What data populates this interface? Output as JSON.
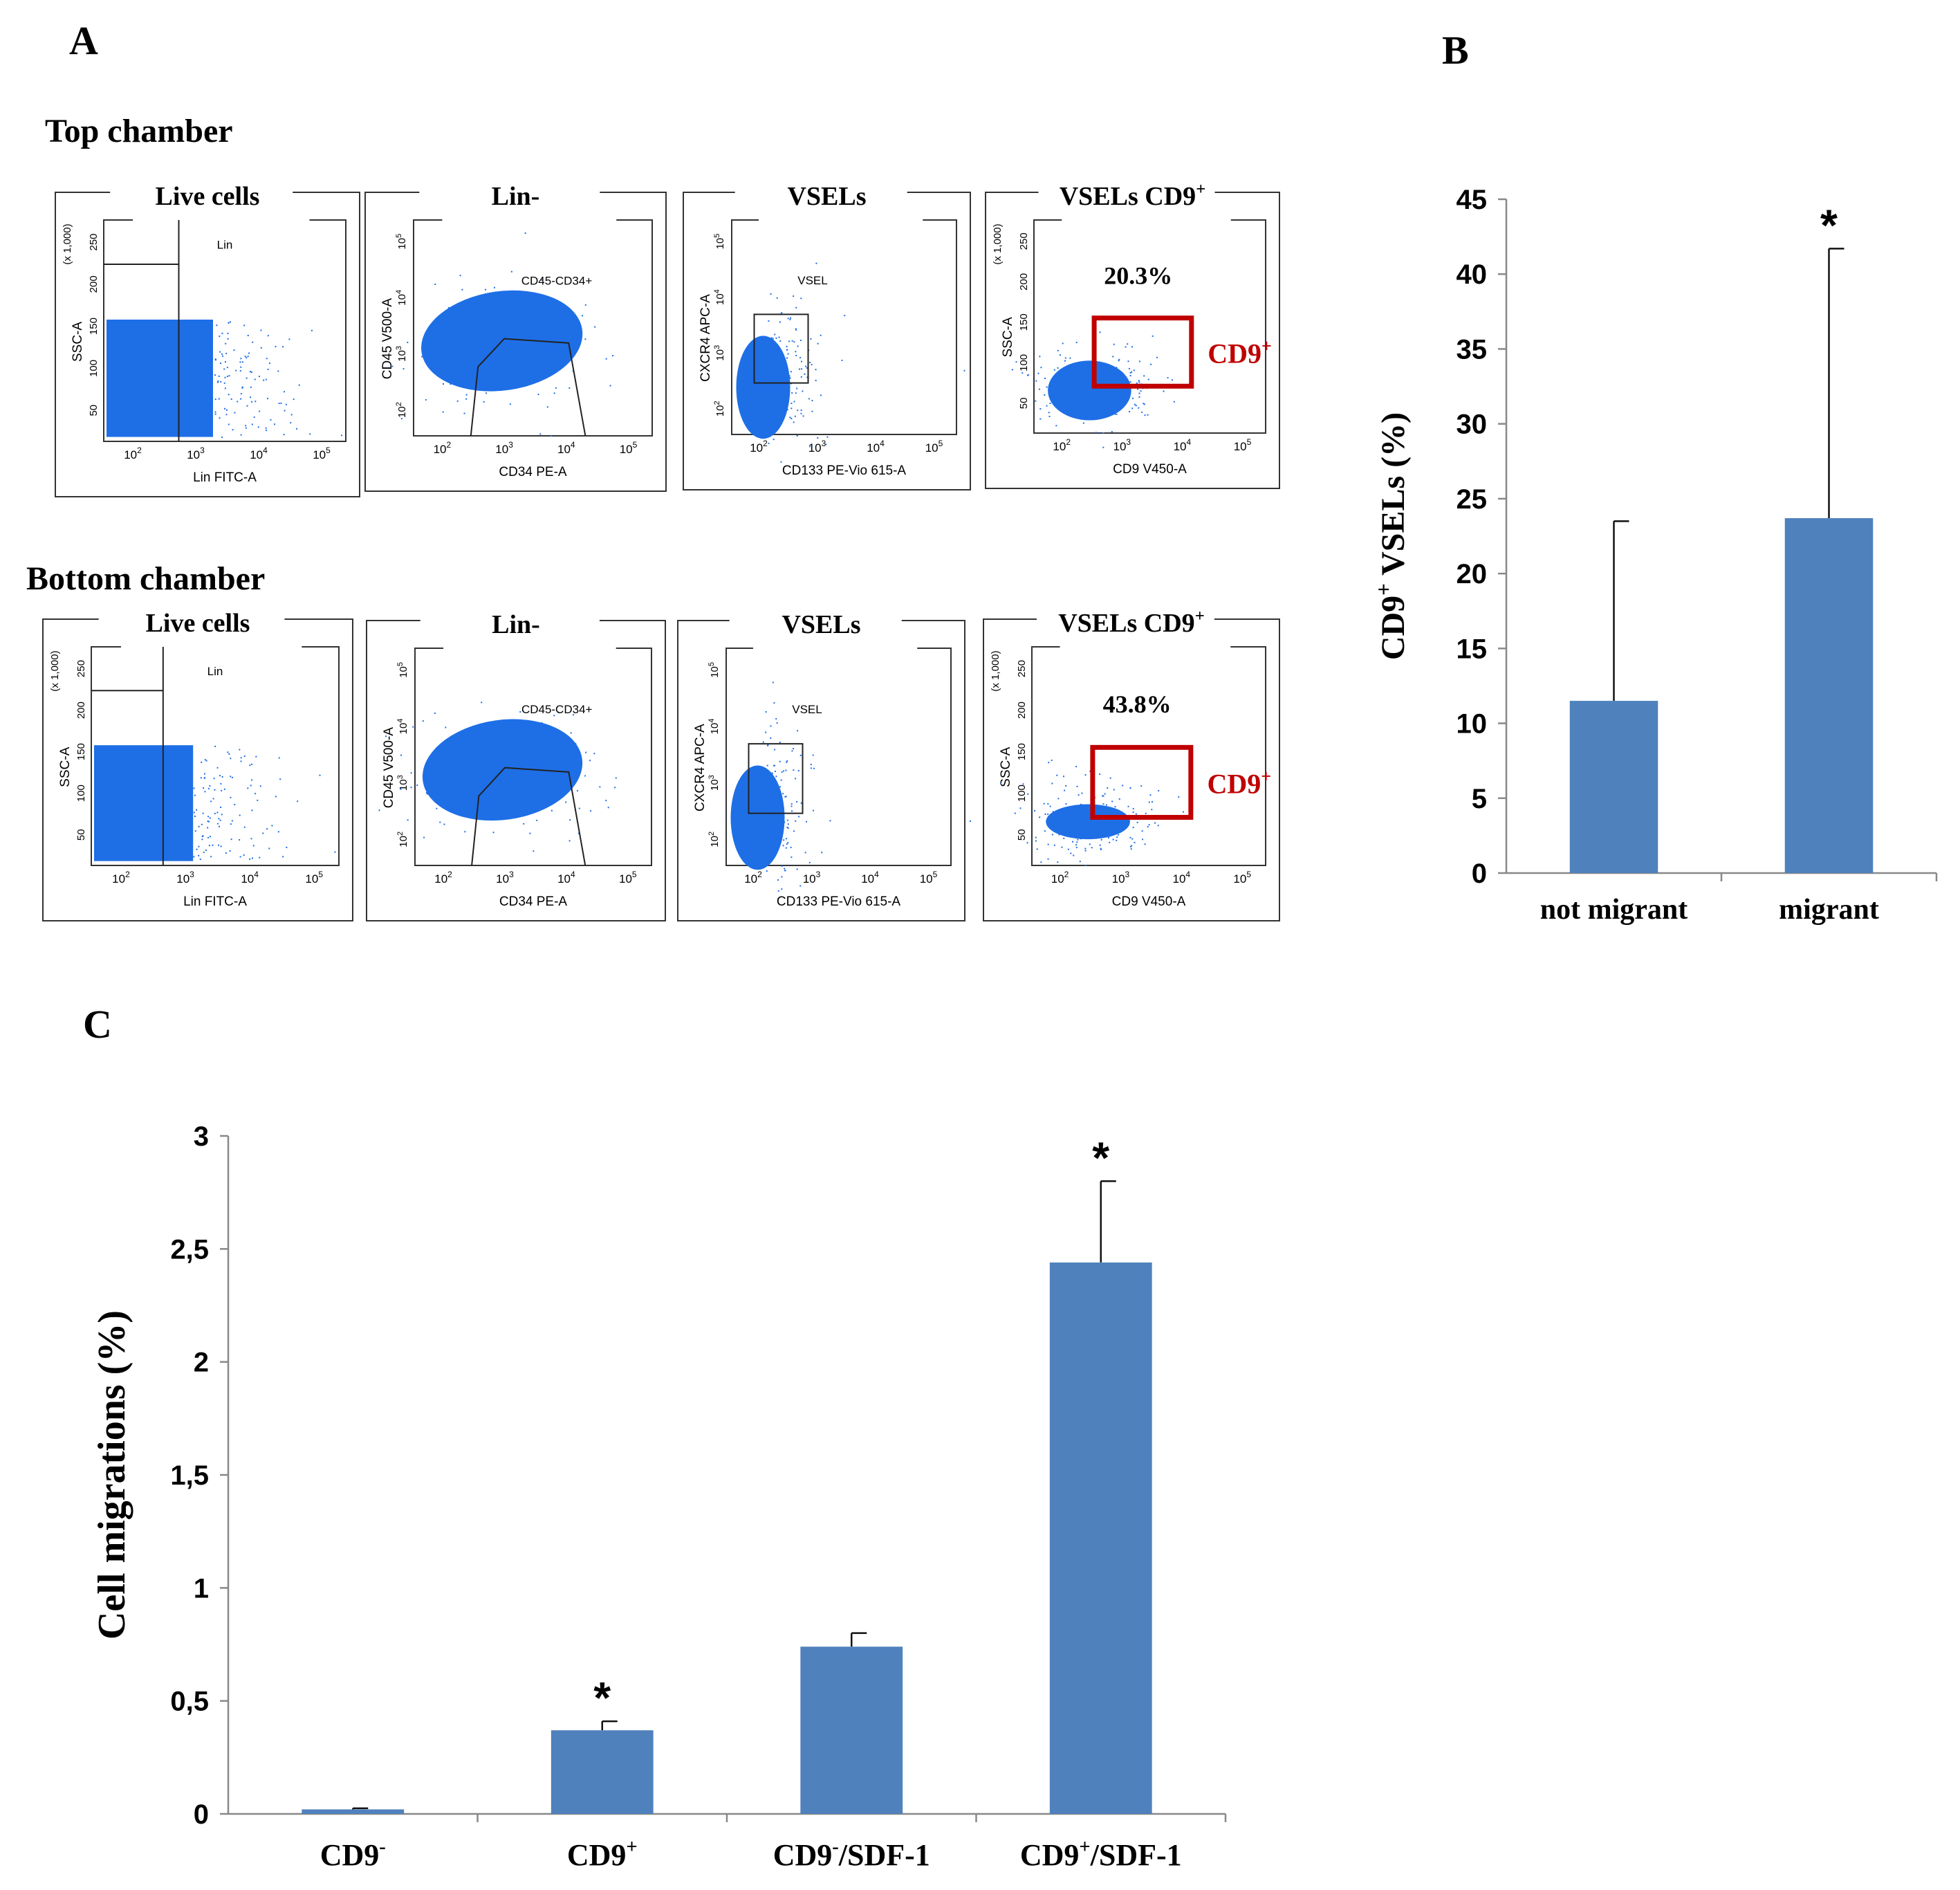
{
  "panel_labels": {
    "a": "A",
    "b": "B",
    "c": "C"
  },
  "panel_a": {
    "rows": [
      {
        "title": "Top chamber",
        "plots": [
          {
            "title": "Live cells",
            "x_label": "Lin FITC-A",
            "y_label": "SSC-A",
            "y_scale_note": "(x 1,000)",
            "gate_label": "Lin",
            "percent": "",
            "side_label": ""
          },
          {
            "title": "Lin-",
            "x_label": "CD34 PE-A",
            "y_label": "CD45 V500-A",
            "y_scale_note": "",
            "gate_label": "CD45-CD34+",
            "percent": "",
            "side_label": ""
          },
          {
            "title": "VSELs",
            "x_label": "CD133 PE-Vio 615-A",
            "y_label": "CXCR4 APC-A",
            "y_scale_note": "",
            "gate_label": "VSEL",
            "percent": "",
            "side_label": ""
          },
          {
            "title": "VSELs CD9",
            "title_sup": "+",
            "x_label": "CD9 V450-A",
            "y_label": "SSC-A",
            "y_scale_note": "(x 1,000)",
            "gate_label": "",
            "percent": "20.3%",
            "side_label": "CD9",
            "side_sup": "+"
          }
        ]
      },
      {
        "title": "Bottom chamber",
        "plots": [
          {
            "title": "Live cells",
            "x_label": "Lin FITC-A",
            "y_label": "SSC-A",
            "y_scale_note": "(x 1,000)",
            "gate_label": "Lin",
            "percent": "",
            "side_label": ""
          },
          {
            "title": "Lin-",
            "x_label": "CD34 PE-A",
            "y_label": "CD45 V500-A",
            "y_scale_note": "",
            "gate_label": "CD45-CD34+",
            "percent": "",
            "side_label": ""
          },
          {
            "title": "VSELs",
            "x_label": "CD133 PE-Vio 615-A",
            "y_label": "CXCR4 APC-A",
            "y_scale_note": "",
            "gate_label": "VSEL",
            "percent": "",
            "side_label": ""
          },
          {
            "title": "VSELs CD9",
            "title_sup": "+",
            "x_label": "CD9 V450-A",
            "y_label": "SSC-A",
            "y_scale_note": "(x 1,000)",
            "gate_label": "",
            "percent": "43.8%",
            "side_label": "CD9",
            "side_sup": "+"
          }
        ]
      }
    ],
    "log_ticks": [
      "10",
      "2",
      "10",
      "3",
      "10",
      "4",
      "10",
      "5"
    ],
    "linear_ticks": [
      "50",
      "100",
      "150",
      "200",
      "250"
    ]
  },
  "chart_data": [
    {
      "type": "bar",
      "panel": "B",
      "categories": [
        "not migrant",
        "migrant"
      ],
      "values": [
        11.5,
        23.7
      ],
      "error_up": [
        12.0,
        18.0
      ],
      "significance": [
        "",
        "*"
      ],
      "ylabel": "CD9+ VSELs (%)",
      "ylabel_parts": {
        "pre": "CD9",
        "sup": "+",
        "post": " VSELs (%)"
      },
      "ylim": [
        0,
        45
      ],
      "yticks": [
        "0",
        "5",
        "10",
        "15",
        "20",
        "25",
        "30",
        "35",
        "40",
        "45"
      ],
      "bar_color": "#4F81BD"
    },
    {
      "type": "bar",
      "panel": "C",
      "categories": [
        "CD9-",
        "CD9+",
        "CD9-/SDF-1",
        "CD9+/SDF-1"
      ],
      "category_parts": [
        {
          "pre": "CD9",
          "sup": "-",
          "post": ""
        },
        {
          "pre": "CD9",
          "sup": "+",
          "post": ""
        },
        {
          "pre": "CD9",
          "sup": "-",
          "post": "/SDF-1"
        },
        {
          "pre": "CD9",
          "sup": "+",
          "post": "/SDF-1"
        }
      ],
      "values": [
        0.02,
        0.37,
        0.74,
        2.44
      ],
      "error_up": [
        0.005,
        0.04,
        0.06,
        0.36
      ],
      "significance": [
        "",
        "*",
        "",
        "*"
      ],
      "ylabel": "Cell migrations (%)",
      "ylim": [
        0,
        3
      ],
      "yticks": [
        "0",
        "0,5",
        "1",
        "1,5",
        "2",
        "2,5",
        "3"
      ],
      "bar_color": "#4F81BD"
    }
  ]
}
